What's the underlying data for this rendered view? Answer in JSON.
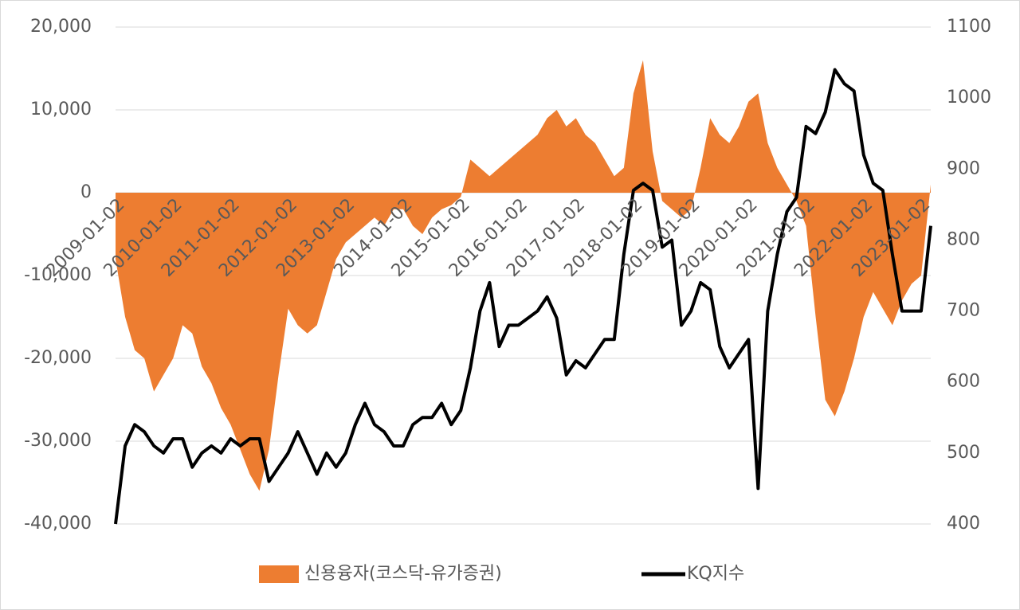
{
  "chart_data": {
    "type": "combo",
    "categories": [
      "2009-01-02",
      null,
      null,
      null,
      null,
      null,
      "2010-01-02",
      null,
      null,
      null,
      null,
      null,
      "2011-01-02",
      null,
      null,
      null,
      null,
      null,
      "2012-01-02",
      null,
      null,
      null,
      null,
      null,
      "2013-01-02",
      null,
      null,
      null,
      null,
      null,
      "2014-01-02",
      null,
      null,
      null,
      null,
      null,
      "2015-01-02",
      null,
      null,
      null,
      null,
      null,
      "2016-01-02",
      null,
      null,
      null,
      null,
      null,
      "2017-01-02",
      null,
      null,
      null,
      null,
      null,
      "2018-01-02",
      null,
      null,
      null,
      null,
      null,
      "2019-01-02",
      null,
      null,
      null,
      null,
      null,
      "2020-01-02",
      null,
      null,
      null,
      null,
      null,
      "2021-01-02",
      null,
      null,
      null,
      null,
      null,
      "2022-01-02",
      null,
      null,
      null,
      null,
      null,
      "2023-01-02",
      null
    ],
    "series": [
      {
        "name": "신용융자(코스닥-유가증권)",
        "type": "area",
        "color": "#ed7d31",
        "values": [
          -8000,
          -15000,
          -19000,
          -20000,
          -24000,
          -22000,
          -20000,
          -16000,
          -17000,
          -21000,
          -23000,
          -26000,
          -28000,
          -31000,
          -34000,
          -36000,
          -31000,
          -22000,
          -14000,
          -16000,
          -17000,
          -16000,
          -12000,
          -8000,
          -6000,
          -5000,
          -4000,
          -3000,
          -4000,
          -2000,
          -2000,
          -4000,
          -5000,
          -3000,
          -2000,
          -1500,
          -500,
          4000,
          3000,
          2000,
          3000,
          4000,
          5000,
          6000,
          7000,
          9000,
          10000,
          8000,
          9000,
          7000,
          6000,
          4000,
          2000,
          3000,
          12000,
          16000,
          5000,
          -1000,
          -2000,
          -3000,
          -2000,
          3000,
          9000,
          7000,
          6000,
          8000,
          11000,
          12000,
          6000,
          3000,
          1000,
          -1000,
          -4000,
          -15000,
          -25000,
          -27000,
          -24000,
          -20000,
          -15000,
          -12000,
          -14000,
          -16000,
          -13000,
          -11000,
          -10000,
          1000
        ]
      },
      {
        "name": "KQ지수",
        "type": "line",
        "color": "#000000",
        "axis": "y2",
        "values": [
          400,
          510,
          540,
          530,
          510,
          500,
          520,
          520,
          480,
          500,
          510,
          500,
          520,
          510,
          520,
          520,
          460,
          480,
          500,
          530,
          500,
          470,
          500,
          480,
          500,
          540,
          570,
          540,
          530,
          510,
          510,
          540,
          550,
          550,
          570,
          540,
          560,
          620,
          700,
          740,
          650,
          680,
          680,
          690,
          700,
          720,
          690,
          610,
          630,
          620,
          640,
          660,
          660,
          780,
          870,
          880,
          870,
          790,
          800,
          680,
          700,
          740,
          730,
          650,
          620,
          640,
          660,
          450,
          700,
          780,
          840,
          860,
          960,
          950,
          980,
          1040,
          1020,
          1010,
          920,
          880,
          870,
          780,
          700,
          700,
          700,
          820
        ]
      }
    ],
    "ylim": [
      -40000,
      20000
    ],
    "yticks": [
      {
        "value": -40000,
        "label": "-40,000"
      },
      {
        "value": -30000,
        "label": "-30,000"
      },
      {
        "value": -20000,
        "label": "-20,000"
      },
      {
        "value": -10000,
        "label": "-10,000"
      },
      0,
      {
        "value": 10000,
        "label": "10,000"
      },
      {
        "value": 20000,
        "label": "20,000"
      }
    ],
    "y2lim": [
      400,
      1100
    ],
    "y2ticks": [
      400,
      500,
      600,
      700,
      800,
      900,
      1000,
      1100
    ],
    "grid": true
  }
}
